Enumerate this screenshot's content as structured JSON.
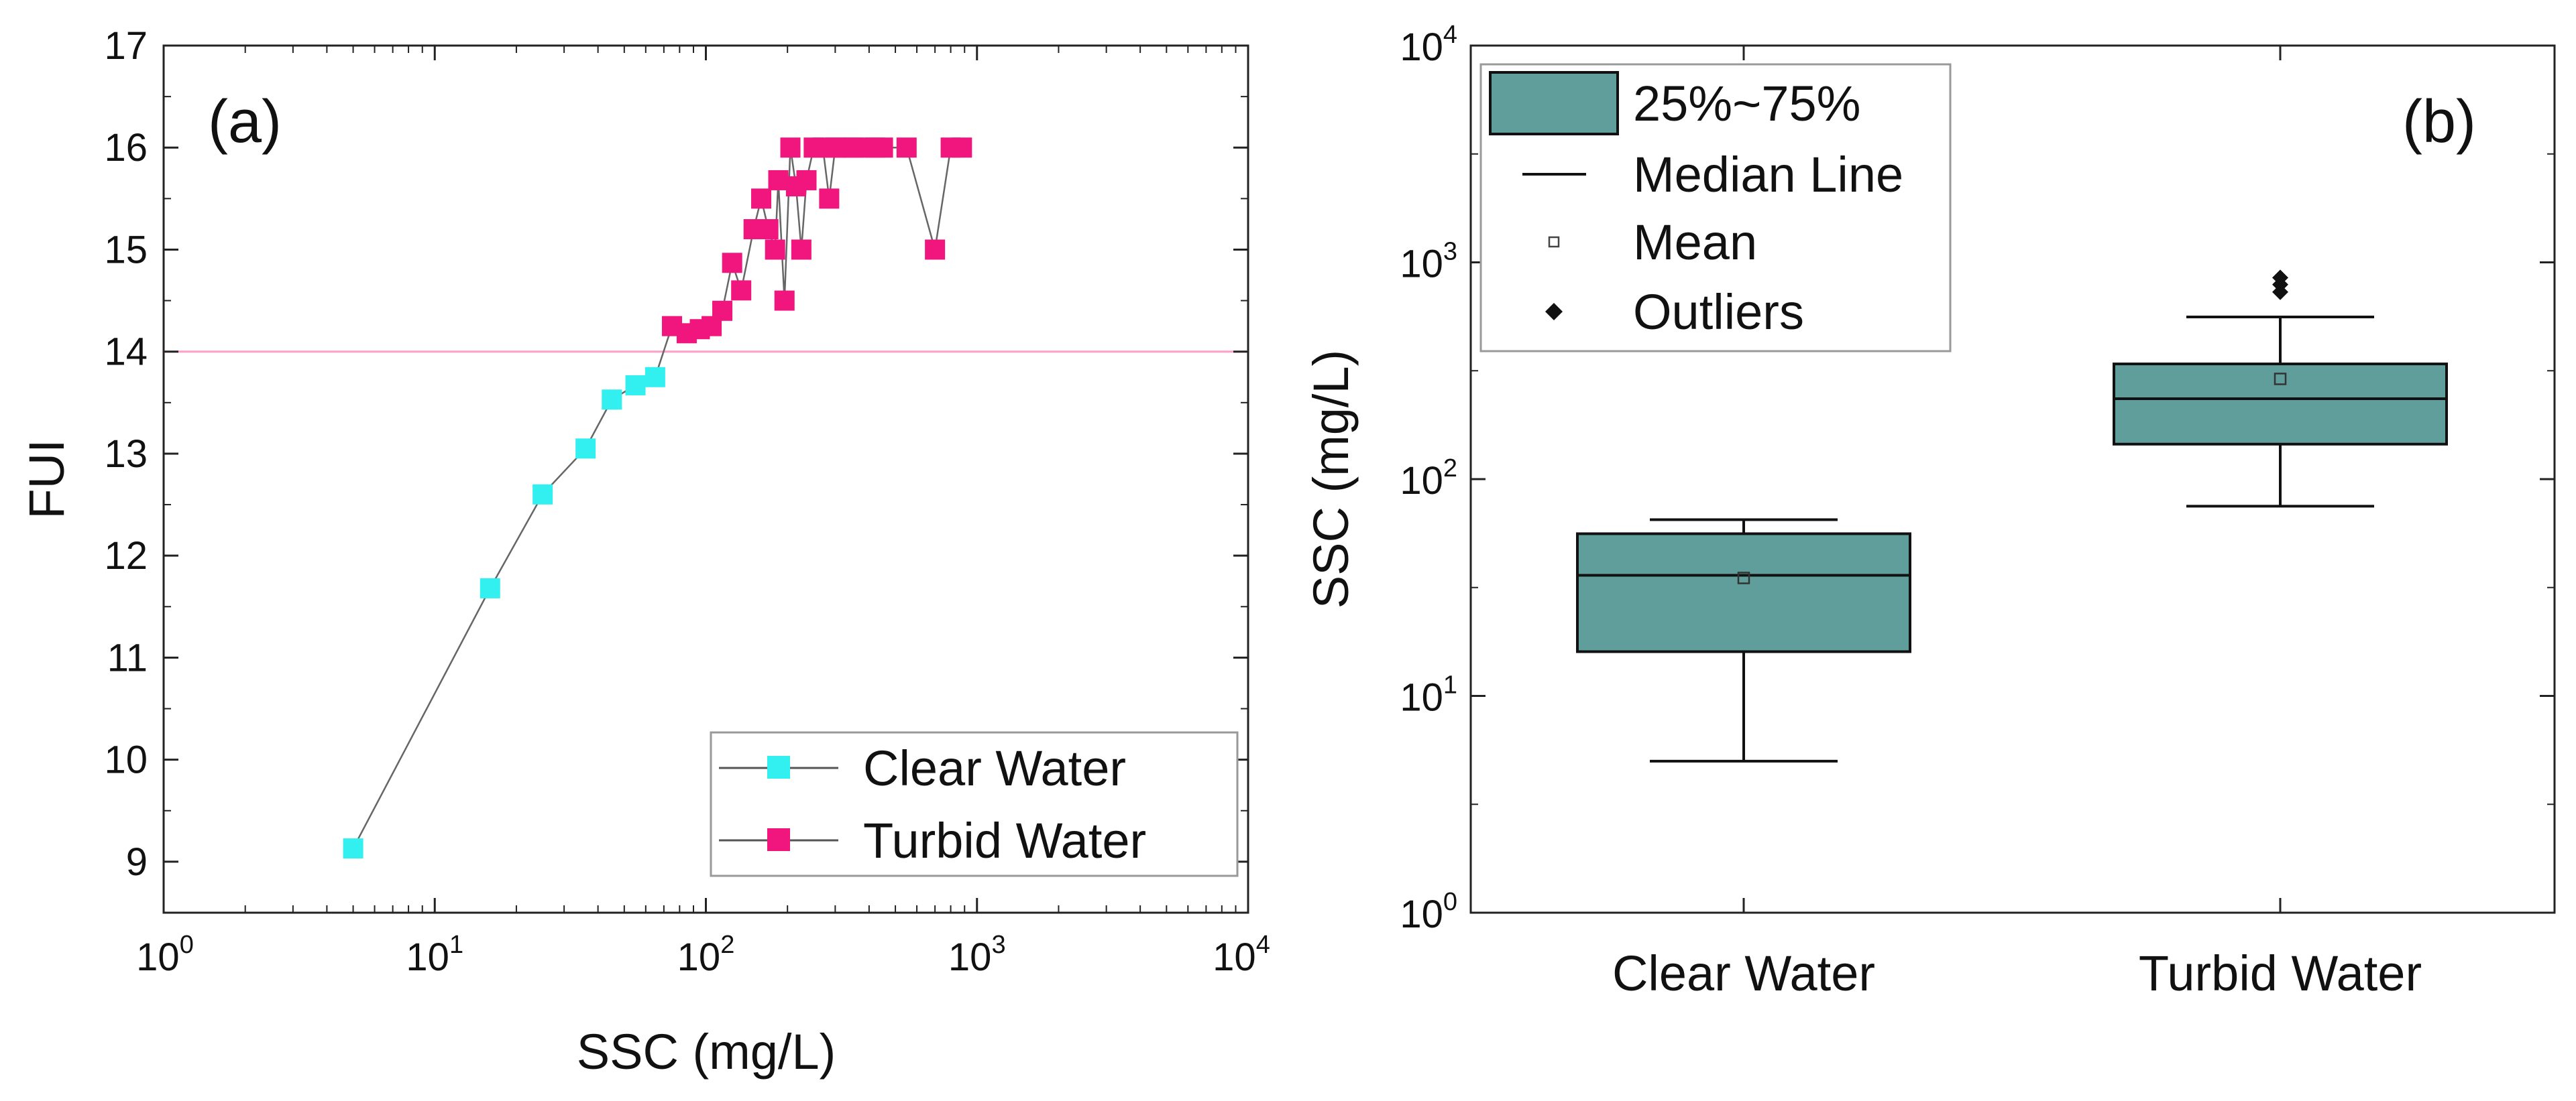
{
  "chart_data": [
    {
      "type": "scatter",
      "panel_label": "(a)",
      "xlabel": "SSC (mg/L)",
      "ylabel": "FUI",
      "x_scale": "log",
      "xlim": [
        1,
        10000
      ],
      "ylim": [
        8.5,
        17
      ],
      "x_ticks": [
        {
          "base": "10",
          "exp": "0",
          "value": 1
        },
        {
          "base": "10",
          "exp": "1",
          "value": 10
        },
        {
          "base": "10",
          "exp": "2",
          "value": 100
        },
        {
          "base": "10",
          "exp": "3",
          "value": 1000
        },
        {
          "base": "10",
          "exp": "4",
          "value": 10000
        }
      ],
      "y_ticks": [
        "9",
        "10",
        "11",
        "12",
        "13",
        "14",
        "15",
        "16",
        "17"
      ],
      "threshold_line": {
        "y": 14,
        "color": "#ff9ec8"
      },
      "legend": {
        "position": "bottom-right",
        "entries": [
          "Clear Water",
          "Turbid Water"
        ]
      },
      "series": [
        {
          "name": "Clear Water",
          "color": "#33f0f0",
          "points": [
            [
              5,
              9.13
            ],
            [
              16,
              11.68
            ],
            [
              25,
              12.6
            ],
            [
              36,
              13.05
            ],
            [
              45,
              13.53
            ],
            [
              55,
              13.67
            ],
            [
              65,
              13.75
            ]
          ]
        },
        {
          "name": "Turbid Water",
          "color": "#f0167e",
          "points": [
            [
              75,
              14.25
            ],
            [
              85,
              14.18
            ],
            [
              95,
              14.22
            ],
            [
              105,
              14.25
            ],
            [
              115,
              14.4
            ],
            [
              125,
              14.87
            ],
            [
              135,
              14.6
            ],
            [
              150,
              15.2
            ],
            [
              160,
              15.5
            ],
            [
              170,
              15.2
            ],
            [
              180,
              15.0
            ],
            [
              185,
              15.68
            ],
            [
              195,
              14.5
            ],
            [
              205,
              16.0
            ],
            [
              215,
              15.62
            ],
            [
              225,
              15.0
            ],
            [
              235,
              15.68
            ],
            [
              250,
              16.0
            ],
            [
              270,
              16.0
            ],
            [
              285,
              15.5
            ],
            [
              300,
              16.0
            ],
            [
              320,
              16.0
            ],
            [
              350,
              16.0
            ],
            [
              380,
              16.0
            ],
            [
              420,
              16.0
            ],
            [
              450,
              16.0
            ],
            [
              550,
              16.0
            ],
            [
              700,
              15.0
            ],
            [
              800,
              16.0
            ],
            [
              880,
              16.0
            ]
          ]
        }
      ]
    },
    {
      "type": "box",
      "panel_label": "(b)",
      "ylabel": "SSC (mg/L)",
      "y_scale": "log",
      "ylim": [
        1,
        10000
      ],
      "y_ticks": [
        {
          "base": "10",
          "exp": "0",
          "value": 1
        },
        {
          "base": "10",
          "exp": "1",
          "value": 10
        },
        {
          "base": "10",
          "exp": "2",
          "value": 100
        },
        {
          "base": "10",
          "exp": "3",
          "value": 1000
        },
        {
          "base": "10",
          "exp": "4",
          "value": 10000
        }
      ],
      "categories": [
        "Clear Water",
        "Turbid Water"
      ],
      "box_color": "#5f9e9b",
      "legend": {
        "position": "top-left",
        "entries": [
          "25%~75%",
          "Median Line",
          "Mean",
          "Outliers"
        ]
      },
      "boxes": [
        {
          "category": "Clear Water",
          "whisker_low": 5,
          "q1": 16,
          "median": 36,
          "q3": 56,
          "whisker_high": 65,
          "mean": 35,
          "outliers": []
        },
        {
          "category": "Turbid Water",
          "whisker_low": 75,
          "q1": 145,
          "median": 235,
          "q3": 340,
          "whisker_high": 560,
          "mean": 290,
          "outliers": [
            730,
            790,
            850
          ]
        }
      ]
    }
  ]
}
